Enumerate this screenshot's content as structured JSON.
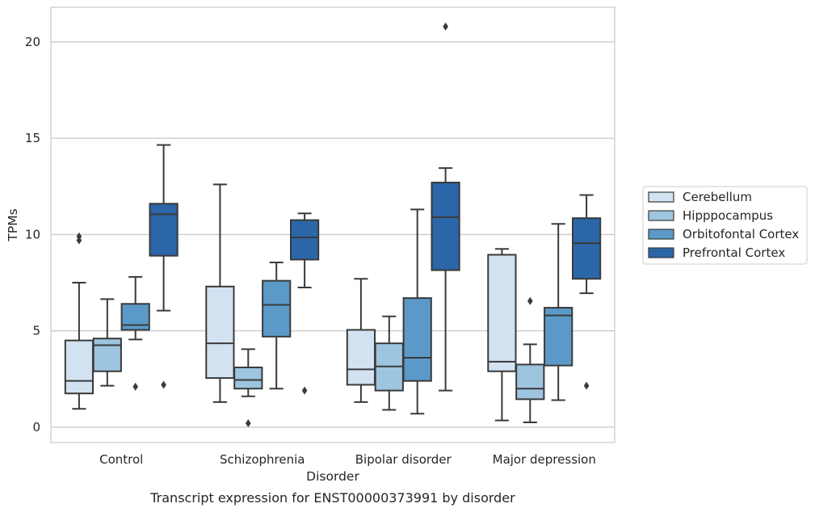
{
  "caption": "Transcript expression for ENST00000373991 by disorder",
  "chart_data": {
    "type": "boxplot",
    "xlabel": "Disorder",
    "ylabel": "TPMs",
    "ylim": [
      -0.8,
      21.8
    ],
    "yticks": [
      0,
      5,
      10,
      15,
      20
    ],
    "grid": "horizontal",
    "legend_position": "right",
    "categories": [
      "Control",
      "Schizophrenia",
      "Bipolar disorder",
      "Major depression"
    ],
    "series": [
      {
        "name": "Cerebellum",
        "color": "#d3e2f1",
        "boxes": [
          {
            "whislo": 0.95,
            "q1": 1.75,
            "med": 2.4,
            "q3": 4.5,
            "whishi": 7.5,
            "fliers": [
              9.7,
              9.9
            ]
          },
          {
            "whislo": 1.3,
            "q1": 2.55,
            "med": 4.35,
            "q3": 7.3,
            "whishi": 12.6,
            "fliers": []
          },
          {
            "whislo": 1.3,
            "q1": 2.2,
            "med": 3.0,
            "q3": 5.05,
            "whishi": 7.7,
            "fliers": []
          },
          {
            "whislo": 0.35,
            "q1": 2.9,
            "med": 3.4,
            "q3": 8.95,
            "whishi": 9.25,
            "fliers": []
          }
        ]
      },
      {
        "name": "Hipppocampus",
        "color": "#9ec5e0",
        "boxes": [
          {
            "whislo": 2.15,
            "q1": 2.9,
            "med": 4.25,
            "q3": 4.6,
            "whishi": 6.65,
            "fliers": []
          },
          {
            "whislo": 1.6,
            "q1": 2.0,
            "med": 2.45,
            "q3": 3.1,
            "whishi": 4.05,
            "fliers": [
              0.2
            ]
          },
          {
            "whislo": 0.9,
            "q1": 1.9,
            "med": 3.15,
            "q3": 4.35,
            "whishi": 5.75,
            "fliers": []
          },
          {
            "whislo": 0.25,
            "q1": 1.45,
            "med": 2.0,
            "q3": 3.25,
            "whishi": 4.3,
            "fliers": [
              6.55
            ]
          }
        ]
      },
      {
        "name": "Orbitofontal Cortex",
        "color": "#5b9ac8",
        "boxes": [
          {
            "whislo": 4.55,
            "q1": 5.05,
            "med": 5.3,
            "q3": 6.4,
            "whishi": 7.8,
            "fliers": [
              2.1
            ]
          },
          {
            "whislo": 2.0,
            "q1": 4.7,
            "med": 6.35,
            "q3": 7.6,
            "whishi": 8.55,
            "fliers": []
          },
          {
            "whislo": 0.7,
            "q1": 2.4,
            "med": 3.6,
            "q3": 6.7,
            "whishi": 11.3,
            "fliers": []
          },
          {
            "whislo": 1.4,
            "q1": 3.2,
            "med": 5.8,
            "q3": 6.2,
            "whishi": 10.55,
            "fliers": []
          }
        ]
      },
      {
        "name": "Prefrontal Cortex",
        "color": "#2b66a8",
        "boxes": [
          {
            "whislo": 6.05,
            "q1": 8.9,
            "med": 11.05,
            "q3": 11.6,
            "whishi": 14.65,
            "fliers": [
              2.2
            ]
          },
          {
            "whislo": 7.25,
            "q1": 8.7,
            "med": 9.85,
            "q3": 10.75,
            "whishi": 11.1,
            "fliers": [
              1.9
            ]
          },
          {
            "whislo": 1.9,
            "q1": 8.15,
            "med": 10.9,
            "q3": 12.7,
            "whishi": 13.45,
            "fliers": [
              20.8
            ]
          },
          {
            "whislo": 6.95,
            "q1": 7.7,
            "med": 9.55,
            "q3": 10.85,
            "whishi": 12.05,
            "fliers": [
              2.15
            ]
          }
        ]
      }
    ]
  }
}
